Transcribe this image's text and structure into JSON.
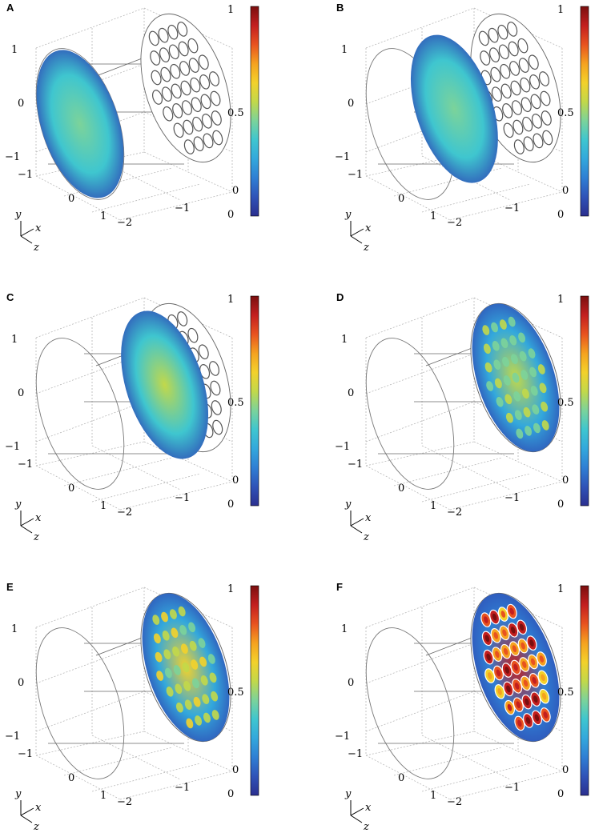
{
  "colormap": [
    "#2b2f8f",
    "#2f53b8",
    "#2f7fd4",
    "#33a8dc",
    "#3fc6cf",
    "#7cd39a",
    "#c2d84a",
    "#f3d12b",
    "#f5a21f",
    "#e8531f",
    "#c31f1f",
    "#7a0f0f"
  ],
  "wire_color": "#555555",
  "grid_color": "#b8b8b8",
  "axes_letters": {
    "y": "y",
    "x": "x",
    "z": "z"
  },
  "tick_labels": {
    "y": [
      "1",
      "0",
      "−1"
    ],
    "x": [
      "−1",
      "0",
      "1"
    ],
    "z": [
      "−2",
      "−1",
      "0"
    ]
  },
  "colorbar_ticks": [
    "1",
    "0.5",
    "0"
  ],
  "panels": [
    {
      "id": "A",
      "label": "A",
      "beam_position": 0.0,
      "beam_pattern": "smooth",
      "beam_level": 0.35,
      "peak_level": 0.45
    },
    {
      "id": "B",
      "label": "B",
      "beam_position": 0.42,
      "beam_pattern": "smooth",
      "beam_level": 0.35,
      "peak_level": 0.48
    },
    {
      "id": "C",
      "label": "C",
      "beam_position": 0.8,
      "beam_pattern": "smooth",
      "beam_level": 0.38,
      "peak_level": 0.5
    },
    {
      "id": "D",
      "label": "D",
      "beam_position": 1.0,
      "beam_pattern": "spots",
      "beam_level": 0.3,
      "peak_level": 0.55
    },
    {
      "id": "E",
      "label": "E",
      "beam_position": 1.0,
      "beam_pattern": "spots",
      "beam_level": 0.25,
      "peak_level": 0.65
    },
    {
      "id": "F",
      "label": "F",
      "beam_position": 1.0,
      "beam_pattern": "cells",
      "beam_level": 0.2,
      "peak_level": 0.95
    }
  ]
}
